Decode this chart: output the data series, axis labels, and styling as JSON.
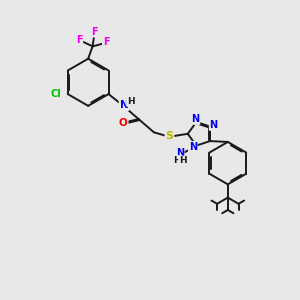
{
  "background_color": "#e8e8e8",
  "bond_color": "#1a1a1a",
  "atom_colors": {
    "N": "#0000ee",
    "O": "#ee0000",
    "S": "#bbbb00",
    "Cl": "#00bb00",
    "F": "#ee00ee",
    "C": "#1a1a1a",
    "H": "#1a1a1a"
  },
  "figsize": [
    3.0,
    3.0
  ],
  "dpi": 100
}
